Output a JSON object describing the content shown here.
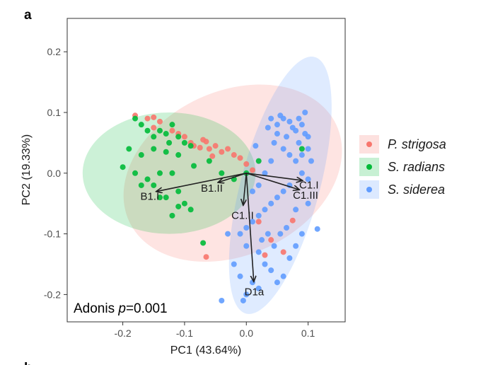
{
  "panel_letter": "a",
  "next_panel_letter": "b",
  "chart_data": {
    "type": "scatter",
    "xlabel": "PC1 (43.64%)",
    "ylabel": "PC2 (19.33%)",
    "xlim": [
      -0.29,
      0.16
    ],
    "ylim": [
      -0.245,
      0.255
    ],
    "x_ticks": [
      -0.2,
      -0.1,
      0.0,
      0.1
    ],
    "x_tick_labels": [
      "-0.2",
      "-0.1",
      "0.0",
      "0.1"
    ],
    "y_ticks": [
      -0.2,
      -0.1,
      0.0,
      0.1,
      0.2
    ],
    "y_tick_labels": [
      "-0.2",
      "-0.1",
      "0.0",
      "0.1",
      "0.2"
    ],
    "grid": false,
    "legend_position": "right",
    "annotation": {
      "prefix": "Adonis ",
      "italic": "p",
      "suffix": "=0.001"
    },
    "series": [
      {
        "name": "P. strigosa",
        "color": "#F8766D",
        "ellipse": {
          "cx": -0.022,
          "cy": 0.0,
          "rx": 0.185,
          "ry": 0.135,
          "angle": -25
        },
        "points": [
          [
            -0.18,
            0.095
          ],
          [
            -0.16,
            0.09
          ],
          [
            -0.15,
            0.092
          ],
          [
            -0.14,
            0.085
          ],
          [
            -0.12,
            0.07
          ],
          [
            -0.1,
            0.06
          ],
          [
            -0.09,
            0.05
          ],
          [
            -0.07,
            0.055
          ],
          [
            -0.06,
            0.04
          ],
          [
            -0.05,
            0.045
          ],
          [
            -0.04,
            0.035
          ],
          [
            -0.03,
            0.04
          ],
          [
            -0.02,
            0.03
          ],
          [
            -0.01,
            0.025
          ],
          [
            -0.085,
            0.045
          ],
          [
            -0.075,
            0.042
          ],
          [
            -0.065,
            0.052
          ],
          [
            -0.055,
            0.028
          ],
          [
            -0.15,
            0.075
          ],
          [
            -0.11,
            0.065
          ],
          [
            0.0,
            0.015
          ],
          [
            0.01,
            0.005
          ],
          [
            -0.065,
            -0.138
          ],
          [
            0.04,
            -0.11
          ],
          [
            0.075,
            -0.078
          ],
          [
            0.03,
            -0.135
          ],
          [
            0.02,
            -0.08
          ],
          [
            0.06,
            -0.13
          ]
        ]
      },
      {
        "name": "S. radians",
        "color": "#00BA38",
        "ellipse": {
          "cx": -0.125,
          "cy": 0.0,
          "rx": 0.14,
          "ry": 0.1,
          "angle": 0
        },
        "points": [
          [
            -0.18,
            0.09
          ],
          [
            -0.17,
            0.08
          ],
          [
            -0.16,
            0.07
          ],
          [
            -0.15,
            0.06
          ],
          [
            -0.14,
            0.07
          ],
          [
            -0.13,
            0.065
          ],
          [
            -0.12,
            0.08
          ],
          [
            -0.11,
            0.06
          ],
          [
            -0.1,
            0.05
          ],
          [
            -0.09,
            0.045
          ],
          [
            -0.19,
            0.04
          ],
          [
            -0.17,
            0.03
          ],
          [
            -0.15,
            0.04
          ],
          [
            -0.13,
            0.035
          ],
          [
            -0.11,
            0.03
          ],
          [
            -0.2,
            0.01
          ],
          [
            -0.18,
            0.0
          ],
          [
            -0.16,
            -0.01
          ],
          [
            -0.14,
            0.0
          ],
          [
            -0.12,
            0.0
          ],
          [
            -0.15,
            -0.02
          ],
          [
            -0.13,
            -0.04
          ],
          [
            -0.11,
            -0.03
          ],
          [
            -0.1,
            -0.05
          ],
          [
            -0.09,
            -0.06
          ],
          [
            -0.12,
            -0.07
          ],
          [
            -0.14,
            -0.04
          ],
          [
            -0.17,
            -0.02
          ],
          [
            -0.07,
            -0.115
          ],
          [
            -0.11,
            -0.055
          ],
          [
            -0.06,
            0.02
          ],
          [
            -0.04,
            0.0
          ],
          [
            -0.02,
            -0.01
          ],
          [
            0.0,
            0.0
          ],
          [
            0.02,
            0.02
          ],
          [
            0.09,
            0.04
          ],
          [
            -0.085,
            0.012
          ],
          [
            -0.125,
            0.05
          ]
        ]
      },
      {
        "name": "S. siderea",
        "color": "#619CFF",
        "ellipse": {
          "cx": 0.055,
          "cy": -0.02,
          "rx": 0.215,
          "ry": 0.065,
          "angle": -75
        },
        "points": [
          [
            0.04,
            0.09
          ],
          [
            0.05,
            0.08
          ],
          [
            0.06,
            0.09
          ],
          [
            0.07,
            0.085
          ],
          [
            0.08,
            0.07
          ],
          [
            0.09,
            0.08
          ],
          [
            0.095,
            0.1
          ],
          [
            0.085,
            0.09
          ],
          [
            0.075,
            0.075
          ],
          [
            0.065,
            0.06
          ],
          [
            0.05,
            0.065
          ],
          [
            0.045,
            0.05
          ],
          [
            0.06,
            0.04
          ],
          [
            0.07,
            0.03
          ],
          [
            0.08,
            0.02
          ],
          [
            0.09,
            0.03
          ],
          [
            0.1,
            0.04
          ],
          [
            0.1,
            0.06
          ],
          [
            0.09,
            0.0
          ],
          [
            0.1,
            -0.01
          ],
          [
            0.07,
            -0.02
          ],
          [
            0.06,
            -0.03
          ],
          [
            0.05,
            -0.04
          ],
          [
            0.04,
            -0.05
          ],
          [
            0.03,
            -0.06
          ],
          [
            0.02,
            -0.07
          ],
          [
            0.01,
            -0.08
          ],
          [
            0.0,
            -0.09
          ],
          [
            -0.01,
            -0.1
          ],
          [
            0.0,
            -0.12
          ],
          [
            0.02,
            -0.13
          ],
          [
            0.03,
            -0.15
          ],
          [
            0.04,
            -0.16
          ],
          [
            0.05,
            -0.18
          ],
          [
            0.06,
            -0.17
          ],
          [
            0.07,
            -0.14
          ],
          [
            0.08,
            -0.12
          ],
          [
            0.09,
            -0.1
          ],
          [
            -0.02,
            -0.15
          ],
          [
            -0.01,
            -0.17
          ],
          [
            0.0,
            -0.2
          ],
          [
            -0.005,
            -0.21
          ],
          [
            0.01,
            -0.18
          ],
          [
            -0.04,
            -0.21
          ],
          [
            0.02,
            -0.19
          ],
          [
            0.04,
            0.02
          ],
          [
            0.03,
            0.0
          ],
          [
            0.02,
            -0.02
          ],
          [
            0.01,
            -0.03
          ],
          [
            0.115,
            -0.092
          ],
          [
            0.1,
            -0.05
          ],
          [
            0.08,
            -0.06
          ],
          [
            0.065,
            -0.09
          ],
          [
            0.055,
            -0.1
          ],
          [
            0.045,
            -0.12
          ],
          [
            0.035,
            -0.1
          ],
          [
            0.025,
            -0.11
          ],
          [
            -0.03,
            -0.1
          ],
          [
            0.015,
            0.045
          ],
          [
            0.035,
            0.075
          ],
          [
            0.055,
            0.095
          ],
          [
            0.095,
            0.065
          ],
          [
            0.085,
            0.05
          ],
          [
            0.105,
            0.02
          ]
        ]
      }
    ],
    "vectors": [
      {
        "label": "B1.I",
        "x": -0.145,
        "y": -0.03
      },
      {
        "label": "B1.II",
        "x": -0.045,
        "y": -0.015
      },
      {
        "label": "C1.I",
        "x": 0.09,
        "y": -0.012
      },
      {
        "label": "C1.III",
        "x": 0.085,
        "y": -0.027
      },
      {
        "label": "C1.II",
        "x": -0.005,
        "y": -0.052
      },
      {
        "label": "D1a",
        "x": 0.012,
        "y": -0.178
      }
    ]
  }
}
